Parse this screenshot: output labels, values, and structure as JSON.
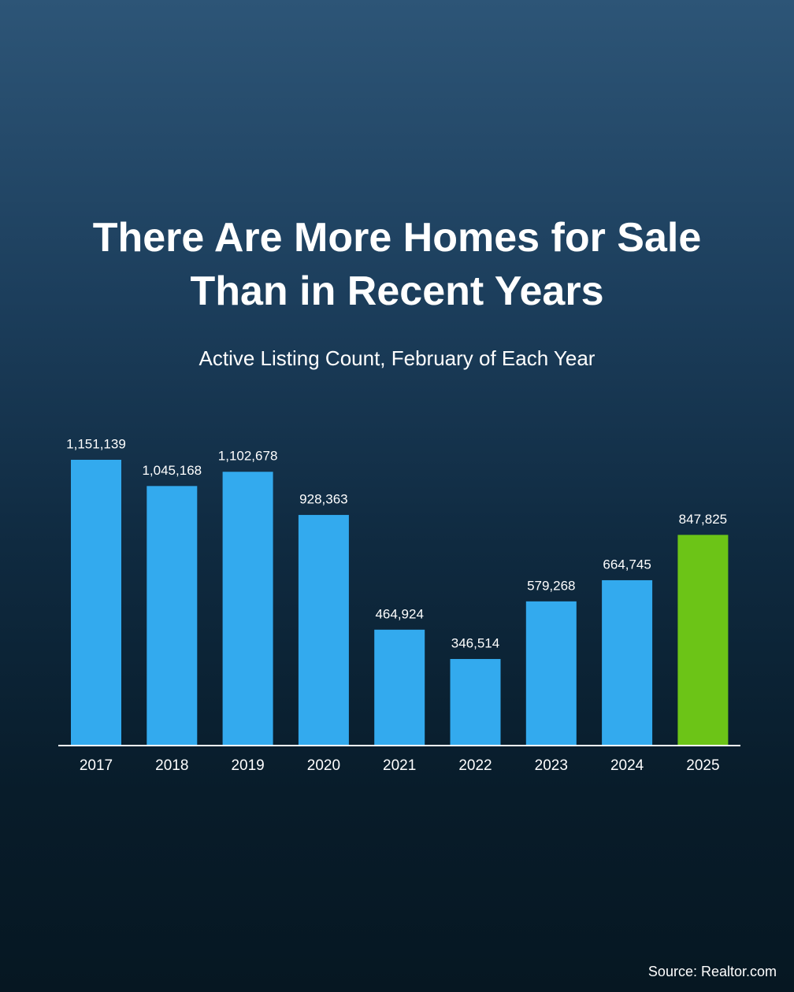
{
  "chart_data": {
    "type": "bar",
    "title": "There Are More Homes for Sale Than in Recent Years",
    "subtitle": "Active Listing Count, February of Each Year",
    "categories": [
      "2017",
      "2018",
      "2019",
      "2020",
      "2021",
      "2022",
      "2023",
      "2024",
      "2025"
    ],
    "values": [
      1151139,
      1045168,
      1102678,
      928363,
      464924,
      346514,
      579268,
      664745,
      847825
    ],
    "value_labels": [
      "1,151,139",
      "1,045,168",
      "1,102,678",
      "928,363",
      "464,924",
      "346,514",
      "579,268",
      "664,745",
      "847,825"
    ],
    "colors": [
      "#33aaee",
      "#33aaee",
      "#33aaee",
      "#33aaee",
      "#33aaee",
      "#33aaee",
      "#33aaee",
      "#33aaee",
      "#6cc417"
    ],
    "source": "Source: Realtor.com"
  }
}
